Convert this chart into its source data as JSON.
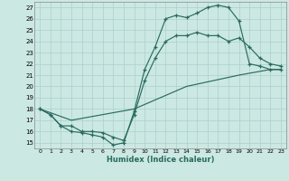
{
  "xlabel": "Humidex (Indice chaleur)",
  "xlim": [
    -0.5,
    23.5
  ],
  "ylim": [
    14.5,
    27.5
  ],
  "xticks": [
    0,
    1,
    2,
    3,
    4,
    5,
    6,
    7,
    8,
    9,
    10,
    11,
    12,
    13,
    14,
    15,
    16,
    17,
    18,
    19,
    20,
    21,
    22,
    23
  ],
  "yticks": [
    15,
    16,
    17,
    18,
    19,
    20,
    21,
    22,
    23,
    24,
    25,
    26,
    27
  ],
  "bg_color": "#cce8e3",
  "grid_color": "#aad0ca",
  "line_color": "#2a6b5e",
  "line1_x": [
    0,
    1,
    2,
    3,
    4,
    5,
    6,
    7,
    8,
    9,
    10,
    11,
    12,
    13,
    14,
    15,
    16,
    17,
    18,
    19,
    20,
    21,
    22,
    23
  ],
  "line1_y": [
    18,
    17.5,
    16.5,
    16.0,
    15.9,
    15.7,
    15.5,
    14.8,
    15.0,
    17.8,
    21.5,
    23.5,
    26.0,
    26.3,
    26.1,
    26.5,
    27.0,
    27.2,
    27.0,
    25.8,
    22.0,
    21.8,
    21.5,
    21.5
  ],
  "line2_x": [
    0,
    1,
    2,
    3,
    4,
    5,
    6,
    7,
    8,
    9,
    10,
    11,
    12,
    13,
    14,
    15,
    16,
    17,
    18,
    19,
    20,
    21,
    22,
    23
  ],
  "line2_y": [
    18,
    17.5,
    16.5,
    16.5,
    16.0,
    16.0,
    15.9,
    15.5,
    15.2,
    17.5,
    20.5,
    22.5,
    24.0,
    24.5,
    24.5,
    24.8,
    24.5,
    24.5,
    24.0,
    24.3,
    23.5,
    22.5,
    22.0,
    21.8
  ],
  "line3_x": [
    0,
    3,
    9,
    14,
    19,
    22,
    23
  ],
  "line3_y": [
    18,
    17.0,
    18.0,
    20.0,
    21.0,
    21.5,
    21.5
  ]
}
